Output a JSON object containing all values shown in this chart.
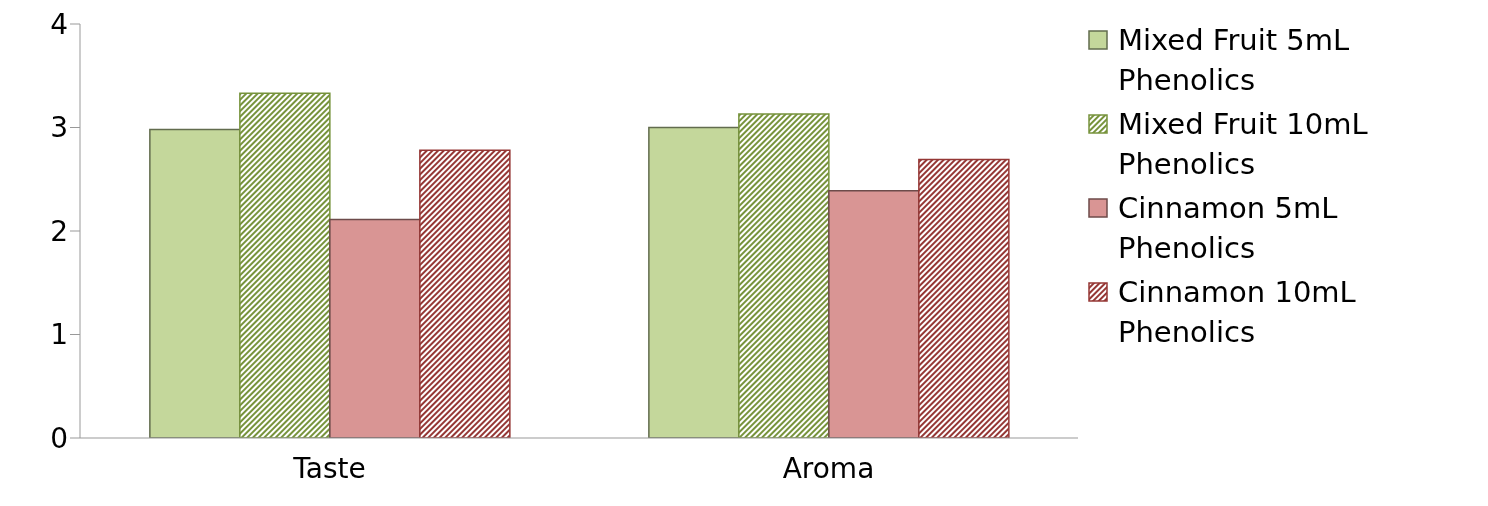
{
  "chart_data": {
    "type": "bar",
    "categories": [
      "Taste",
      "Aroma"
    ],
    "series": [
      {
        "name": "Mixed Fruit 5mL Phenolics",
        "color": "#c4d79b",
        "values": [
          2.98,
          3.0
        ]
      },
      {
        "name": "Mixed Fruit 10mL Phenolics",
        "color": "#77933c",
        "values": [
          3.33,
          3.13
        ]
      },
      {
        "name": "Cinnamon 5mL Phenolics",
        "color": "#d99594",
        "values": [
          2.11,
          2.39
        ]
      },
      {
        "name": "Cinnamon 10mL Phenolics",
        "color": "#953735",
        "values": [
          2.78,
          2.69
        ]
      }
    ],
    "ylim": [
      0,
      4
    ],
    "yticks": [
      0,
      1,
      2,
      3,
      4
    ],
    "grid": false,
    "legend": "right"
  }
}
